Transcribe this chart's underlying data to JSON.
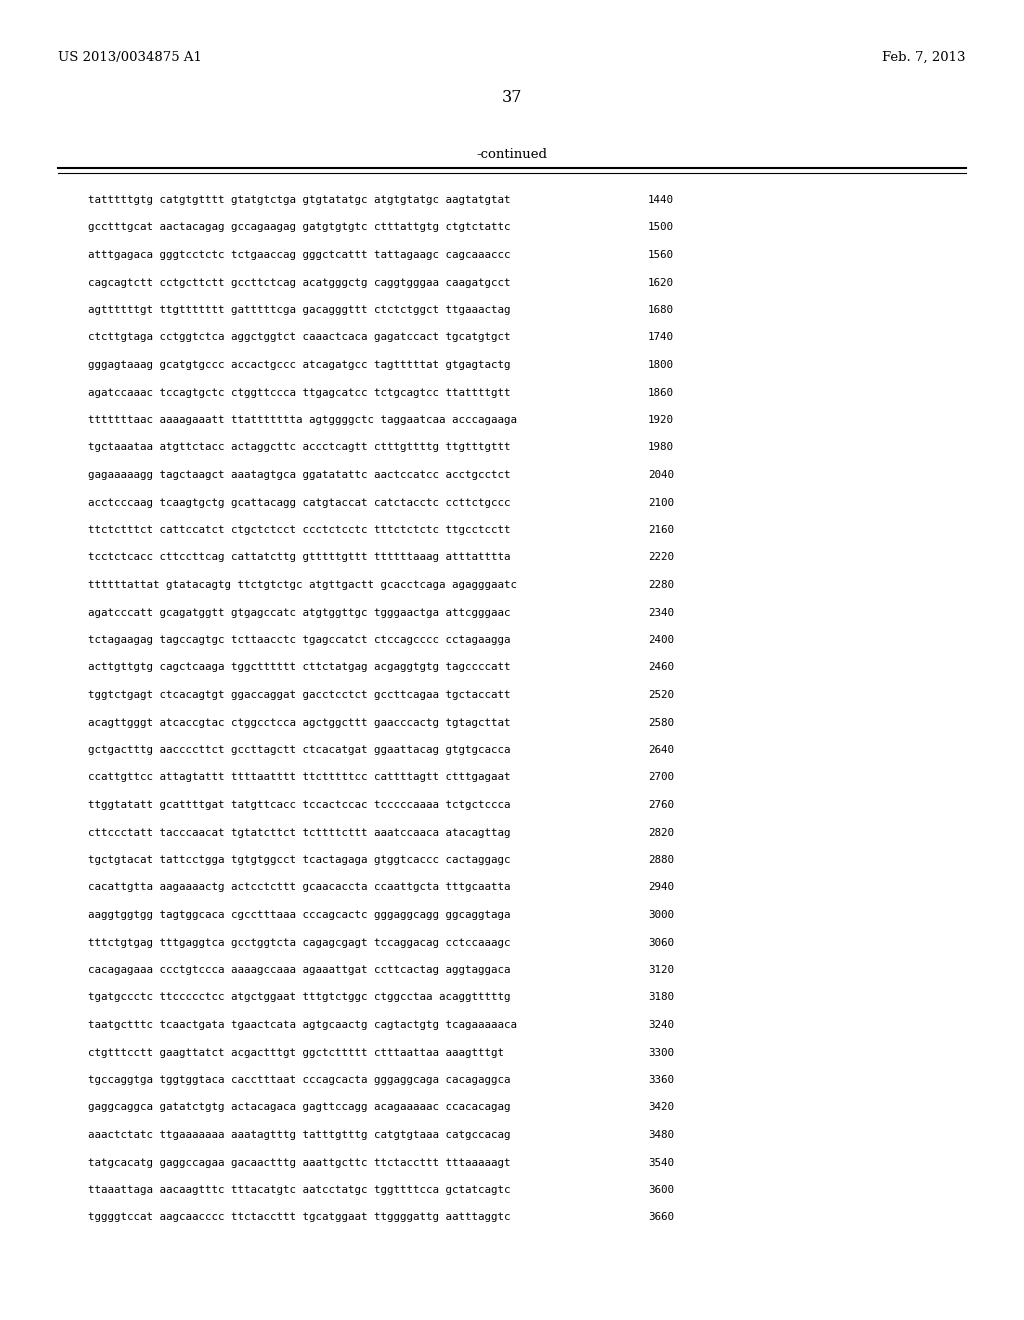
{
  "header_left": "US 2013/0034875 A1",
  "header_right": "Feb. 7, 2013",
  "page_number": "37",
  "continued_label": "-continued",
  "background_color": "#ffffff",
  "text_color": "#000000",
  "font_size_header": 9.5,
  "font_size_page": 11.5,
  "font_size_continued": 9.5,
  "font_size_sequence": 7.8,
  "sequence_lines": [
    [
      "tatttttgtg catgtgtttt gtatgtctga gtgtatatgc atgtgtatgc aagtatgtat",
      "1440"
    ],
    [
      "gcctttgcat aactacagag gccagaagag gatgtgtgtc ctttattgtg ctgtctattc",
      "1500"
    ],
    [
      "atttgagaca gggtcctctc tctgaaccag gggctcattt tattagaagc cagcaaaccc",
      "1560"
    ],
    [
      "cagcagtctt cctgcttctt gccttctcag acatgggctg caggtgggaa caagatgcct",
      "1620"
    ],
    [
      "agttttttgt ttgttttttt gatttttcga gacagggttt ctctctggct ttgaaactag",
      "1680"
    ],
    [
      "ctcttgtaga cctggtctca aggctggtct caaactcaca gagatccact tgcatgtgct",
      "1740"
    ],
    [
      "gggagtaaag gcatgtgccc accactgccc atcagatgcc tagtttttat gtgagtactg",
      "1800"
    ],
    [
      "agatccaaac tccagtgctc ctggttccca ttgagcatcc tctgcagtcc ttattttgtt",
      "1860"
    ],
    [
      "tttttttaac aaaagaaatt ttattttttta agtggggctc taggaatcaa acccagaaga",
      "1920"
    ],
    [
      "tgctaaataa atgttctacc actaggcttc accctcagtt ctttgttttg ttgtttgttt",
      "1980"
    ],
    [
      "gagaaaaagg tagctaagct aaatagtgca ggatatattc aactccatcc acctgcctct",
      "2040"
    ],
    [
      "acctcccaag tcaagtgctg gcattacagg catgtaccat catctacctc ccttctgccc",
      "2100"
    ],
    [
      "ttctctttct cattccatct ctgctctcct ccctctcctc tttctctctc ttgcctcctt",
      "2160"
    ],
    [
      "tcctctcacc cttccttcag cattatcttg gtttttgttt ttttttaaag atttatttta",
      "2220"
    ],
    [
      "ttttttattat gtatacagtg ttctgtctgc atgttgactt gcacctcaga agagggaatc",
      "2280"
    ],
    [
      "agatcccatt gcagatggtt gtgagccatc atgtggttgc tgggaactga attcgggaac",
      "2340"
    ],
    [
      "tctagaagag tagccagtgc tcttaacctc tgagccatct ctccagcccc cctagaagga",
      "2400"
    ],
    [
      "acttgttgtg cagctcaaga tggctttttt cttctatgag acgaggtgtg tagccccatt",
      "2460"
    ],
    [
      "tggtctgagt ctcacagtgt ggaccaggat gacctcctct gccttcagaa tgctaccatt",
      "2520"
    ],
    [
      "acagttgggt atcaccgtac ctggcctcca agctggcttt gaacccactg tgtagcttat",
      "2580"
    ],
    [
      "gctgactttg aaccccttct gccttagctt ctcacatgat ggaattacag gtgtgcacca",
      "2640"
    ],
    [
      "ccattgttcc attagtattt ttttaatttt ttctttttcc cattttagtt ctttgagaat",
      "2700"
    ],
    [
      "ttggtatatt gcattttgat tatgttcacc tccactccac tcccccaaaa tctgctccca",
      "2760"
    ],
    [
      "cttccctatt tacccaacat tgtatcttct tcttttcttt aaatccaaca atacagttag",
      "2820"
    ],
    [
      "tgctgtacat tattcctgga tgtgtggcct tcactagaga gtggtcaccc cactaggagc",
      "2880"
    ],
    [
      "cacattgtta aagaaaactg actcctcttt gcaacaccta ccaattgcta tttgcaatta",
      "2940"
    ],
    [
      "aaggtggtgg tagtggcaca cgcctttaaa cccagcactc gggaggcagg ggcaggtaga",
      "3000"
    ],
    [
      "tttctgtgag tttgaggtca gcctggtcta cagagcgagt tccaggacag cctccaaagc",
      "3060"
    ],
    [
      "cacagagaaa ccctgtccca aaaagccaaa agaaattgat ccttcactag aggtaggaca",
      "3120"
    ],
    [
      "tgatgccctc ttccccctcc atgctggaat tttgtctggc ctggcctaa acaggtttttg",
      "3180"
    ],
    [
      "taatgctttc tcaactgata tgaactcata agtgcaactg cagtactgtg tcagaaaaaca",
      "3240"
    ],
    [
      "ctgtttcctt gaagttatct acgactttgt ggctcttttt ctttaattaa aaagtttgt",
      "3300"
    ],
    [
      "tgccaggtga tggtggtaca cacctttaat cccagcacta gggaggcaga cacagaggca",
      "3360"
    ],
    [
      "gaggcaggca gatatctgtg actacagaca gagttccagg acagaaaaac ccacacagag",
      "3420"
    ],
    [
      "aaactctatc ttgaaaaaaa aaatagtttg tatttgtttg catgtgtaaa catgccacag",
      "3480"
    ],
    [
      "tatgcacatg gaggccagaa gacaactttg aaattgcttc ttctaccttt tttaaaaagt",
      "3540"
    ],
    [
      "ttaaattaga aacaagtttc tttacatgtc aatcctatgc tggttttcca gctatcagtc",
      "3600"
    ],
    [
      "tggggtccat aagcaacccc ttctaccttt tgcatggaat ttggggattg aatttaggtc",
      "3660"
    ]
  ]
}
